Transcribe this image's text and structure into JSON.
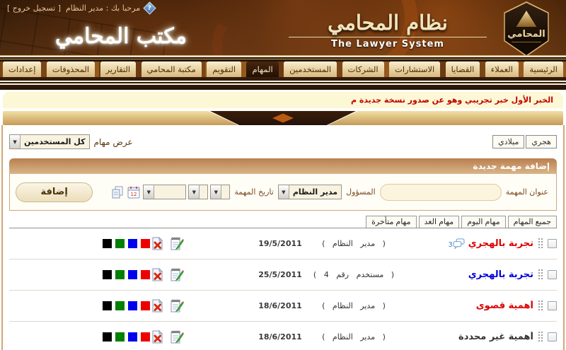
{
  "header": {
    "welcome_text": "مرحبا بك : مدير النظام",
    "logout_label": "[ تسجيل خروج ]",
    "help_glyph": "?",
    "office_title": "مكتب المحامي",
    "app_title_ar": "نظام المحامي",
    "app_title_en": "The Lawyer System",
    "logo_text": "المحامي"
  },
  "nav": {
    "items": [
      {
        "label": "الرئيسية",
        "active": false
      },
      {
        "label": "العملاء",
        "active": false
      },
      {
        "label": "القضايا",
        "active": false
      },
      {
        "label": "الاستشارات",
        "active": false
      },
      {
        "label": "الشركات",
        "active": false
      },
      {
        "label": "المستخدمين",
        "active": false
      },
      {
        "label": "المهام",
        "active": true
      },
      {
        "label": "التقويم",
        "active": false
      },
      {
        "label": "مكتبة المحامي",
        "active": false
      },
      {
        "label": "التقارير",
        "active": false
      },
      {
        "label": "المحذوفات",
        "active": false
      },
      {
        "label": "إعدادات",
        "active": false
      }
    ]
  },
  "news": {
    "ticker_text": "الخبر الأول خبر تجريبي وهو عن صدور نسخة جديدة م"
  },
  "calendar_toggle": {
    "hijri_label": "هجري",
    "gregorian_label": "ميلادي"
  },
  "task_filter_bar": {
    "show_label": "عرض مهام",
    "selected_user": "كل المستخدمين"
  },
  "add_task_form": {
    "section_title": "إضافة مهمة جديدة",
    "title_label": "عنوان المهمة",
    "title_value": "",
    "responsible_label": "المسؤول",
    "responsible_value": "مدير النظام",
    "date_label": "تاريخ المهمة",
    "add_button_label": "إضافة"
  },
  "list_tabs": {
    "items": [
      "جميع المهام",
      "مهام اليوم",
      "مهام الغد",
      "مهام متأخرة"
    ]
  },
  "tasks": [
    {
      "title": "تجربة بالهجري",
      "title_color": "#dd0000",
      "comments_count": "3",
      "responsible": "( مدير النظام )",
      "date": "19/5/2011"
    },
    {
      "title": "تجربة بالهجري",
      "title_color": "#0000dd",
      "responsible": "( مستخدم رقم 4 )",
      "date": "25/5/2011"
    },
    {
      "title": "أهمية قصوى",
      "title_color": "#dd0000",
      "responsible": "( مدير النظام )",
      "date": "18/6/2011"
    },
    {
      "title": "أهمية غير محددة",
      "title_color": "#333333",
      "responsible": "( مدير النظام )",
      "date": "18/6/2011"
    }
  ],
  "priority_colors": [
    "#000000",
    "#008000",
    "#0000ee",
    "#ee0000"
  ],
  "colors": {
    "header_brown": "#2c1706",
    "gold": "#d9b36a",
    "active_tab_bg": "#2e1a0e",
    "ticker_bg": "#fcf7d5",
    "ticker_text": "#c00000",
    "section_bar": "#b97f4e",
    "content_border": "#cfa876"
  }
}
